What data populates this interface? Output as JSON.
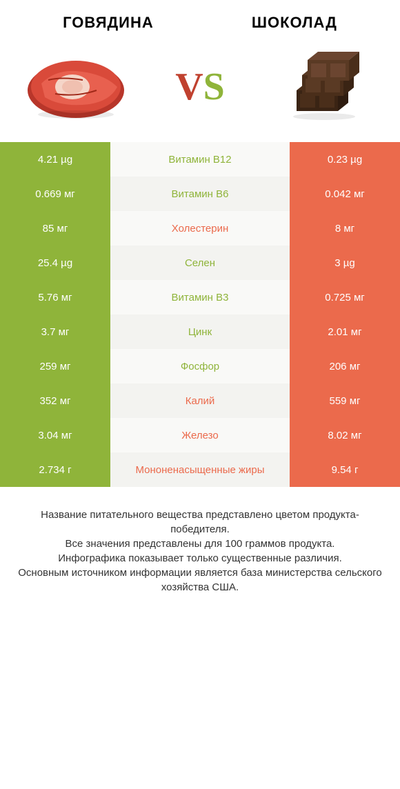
{
  "header": {
    "left_title": "ГОВЯДИНА",
    "right_title": "ШОКОЛАД",
    "vs_label": "VS",
    "vs_color_left": "#c0412f",
    "vs_color_right": "#8fb43a",
    "title_color": "#333333"
  },
  "colors": {
    "green": "#8fb43a",
    "red": "#eb6a4c",
    "row_bg_a": "#f9f9f7",
    "row_bg_b": "#f3f3f0",
    "text": "#333333"
  },
  "rows": [
    {
      "left": "4.21 µg",
      "label": "Витамин B12",
      "right": "0.23 µg",
      "winner": "left"
    },
    {
      "left": "0.669 мг",
      "label": "Витамин B6",
      "right": "0.042 мг",
      "winner": "left"
    },
    {
      "left": "85 мг",
      "label": "Холестерин",
      "right": "8 мг",
      "winner": "right"
    },
    {
      "left": "25.4 µg",
      "label": "Селен",
      "right": "3 µg",
      "winner": "left"
    },
    {
      "left": "5.76 мг",
      "label": "Витамин B3",
      "right": "0.725 мг",
      "winner": "left"
    },
    {
      "left": "3.7 мг",
      "label": "Цинк",
      "right": "2.01 мг",
      "winner": "left"
    },
    {
      "left": "259 мг",
      "label": "Фосфор",
      "right": "206 мг",
      "winner": "left"
    },
    {
      "left": "352 мг",
      "label": "Калий",
      "right": "559 мг",
      "winner": "right"
    },
    {
      "left": "3.04 мг",
      "label": "Железо",
      "right": "8.02 мг",
      "winner": "right"
    },
    {
      "left": "2.734 г",
      "label": "Мононенасыщенные жиры",
      "right": "9.54 г",
      "winner": "right"
    }
  ],
  "footer": {
    "line1": "Название питательного вещества представлено цветом продукта-победителя.",
    "line2": "Все значения представлены для 100 граммов продукта.",
    "line3": "Инфографика показывает только существенные различия.",
    "line4": "Основным источником информации является база министерства сельского хозяйства США."
  }
}
